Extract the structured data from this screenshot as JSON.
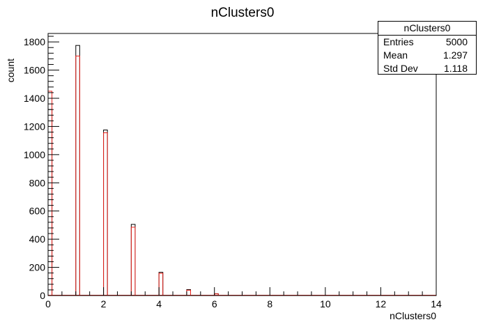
{
  "chart_data": {
    "type": "bar",
    "title": "nClusters0",
    "xlabel": "nClusters0",
    "ylabel": "count",
    "xlim": [
      0,
      14
    ],
    "ylim": [
      0,
      1860
    ],
    "bin_width": 0.14,
    "grid": false,
    "legend": "none",
    "x_ticks": [
      "0",
      "2",
      "4",
      "6",
      "8",
      "10",
      "12",
      "14"
    ],
    "y_ticks": [
      "0",
      "200",
      "400",
      "600",
      "800",
      "1000",
      "1200",
      "1400",
      "1600",
      "1800"
    ],
    "series": [
      {
        "color": "#000000",
        "x": [
          0,
          1,
          2,
          3,
          4,
          5,
          6
        ],
        "values": [
          1320,
          1775,
          1175,
          505,
          165,
          42,
          13
        ]
      },
      {
        "color": "#e8201a",
        "x": [
          0,
          1,
          2,
          3,
          4,
          5,
          6
        ],
        "values": [
          1450,
          1700,
          1155,
          485,
          158,
          38,
          12
        ]
      }
    ]
  },
  "stats": {
    "title": "nClusters0",
    "rows": [
      {
        "label": "Entries",
        "value": "5000"
      },
      {
        "label": "Mean",
        "value": "1.297"
      },
      {
        "label": "Std Dev",
        "value": "1.118"
      }
    ]
  }
}
